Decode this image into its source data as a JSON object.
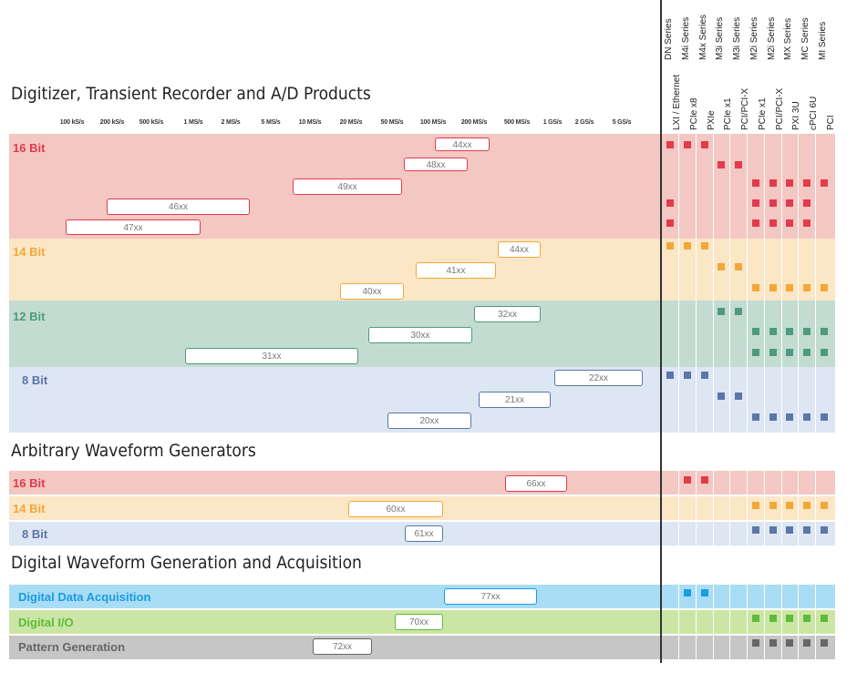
{
  "colors": {
    "16bit": "#e23a4e",
    "16bit_bg": "#f3c7c2",
    "14bit": "#f2a838",
    "14bit_bg": "#fbe6c6",
    "12bit": "#4f9a7e",
    "12bit_bg": "#c3dcd2",
    "8bit": "#5c76a8",
    "8bit_bg": "#dde6f3",
    "dda": "#1a9ce0",
    "dda_bg": "#a9dcf5",
    "dio": "#5fbb3a",
    "dio_bg": "#cbe6a4",
    "pg": "#666666",
    "pg_bg": "#c6c6c6"
  },
  "sections": {
    "digitizer": "Digitizer, Transient Recorder and A/D Products",
    "awg": "Arbitrary Waveform Generators",
    "digital": "Digital Waveform Generation and Acquisition"
  },
  "ticks": [
    "100 kS/s",
    "200 kS/s",
    "500 kS/s",
    "1 MS/s",
    "2 MS/s",
    "5 MS/s",
    "10 MS/s",
    "20 MS/s",
    "50 MS/s",
    "100 MS/s",
    "200 MS/s",
    "500 MS/s",
    "1 GS/s",
    "2 GS/s",
    "5 GS/s"
  ],
  "series_columns": [
    {
      "series": "DN Series",
      "bus": "LXI / Ethernet"
    },
    {
      "series": "M4i Series",
      "bus": "PCIe x8"
    },
    {
      "series": "M4x Series",
      "bus": "PXIe"
    },
    {
      "series": "M3i Series",
      "bus": "PCIe x1"
    },
    {
      "series": "M3i Series",
      "bus": "PCI/PCI-X"
    },
    {
      "series": "M2i Series",
      "bus": "PCIe x1"
    },
    {
      "series": "M2i Series",
      "bus": "PCI/PCI-X"
    },
    {
      "series": "MX Series",
      "bus": "PXI 3U"
    },
    {
      "series": "MC Series",
      "bus": "cPCI 6U"
    },
    {
      "series": "MI Series",
      "bus": "PCI"
    }
  ],
  "rows": {
    "dig16": "16 Bit",
    "dig14": "14 Bit",
    "dig12": "12 Bit",
    "dig8": "8 Bit",
    "awg16": "16 Bit",
    "awg14": "14 Bit",
    "awg8": "8 Bit",
    "dda": "Digital Data Acquisition",
    "dio": "Digital I/O",
    "pg": "Pattern Generation"
  },
  "products": {
    "p44_16": "44xx",
    "p48": "48xx",
    "p49": "49xx",
    "p46": "46xx",
    "p47": "47xx",
    "p44_14": "44xx",
    "p41": "41xx",
    "p40": "40xx",
    "p32": "32xx",
    "p30": "30xx",
    "p31": "31xx",
    "p22": "22xx",
    "p21": "21xx",
    "p20": "20xx",
    "p66": "66xx",
    "p60": "60xx",
    "p61": "61xx",
    "p77": "77xx",
    "p70": "70xx",
    "p72": "72xx"
  },
  "availability": {
    "p44_16": [
      0,
      1,
      2
    ],
    "p48": [
      3,
      4
    ],
    "p49": [
      5,
      6,
      7,
      8,
      9
    ],
    "p46": [
      0,
      5,
      6,
      7,
      8
    ],
    "p47": [
      0,
      5,
      6,
      7,
      8
    ],
    "p44_14": [
      0,
      1,
      2
    ],
    "p41": [
      3,
      4
    ],
    "p40": [
      5,
      6,
      7,
      8,
      9
    ],
    "p32": [
      3,
      4
    ],
    "p30": [
      5,
      6,
      7,
      8,
      9
    ],
    "p31": [
      5,
      6,
      7,
      8,
      9
    ],
    "p22": [
      0,
      1,
      2
    ],
    "p21": [
      3,
      4
    ],
    "p20": [
      5,
      6,
      7,
      8,
      9
    ],
    "p66": [
      1,
      2
    ],
    "p60": [
      5,
      6,
      7,
      8,
      9
    ],
    "p61": [
      5,
      6,
      7,
      8,
      9
    ],
    "p77": [
      1,
      2
    ],
    "p70": [
      5,
      6,
      7,
      8,
      9
    ],
    "p72": [
      5,
      6,
      7,
      8,
      9
    ]
  }
}
